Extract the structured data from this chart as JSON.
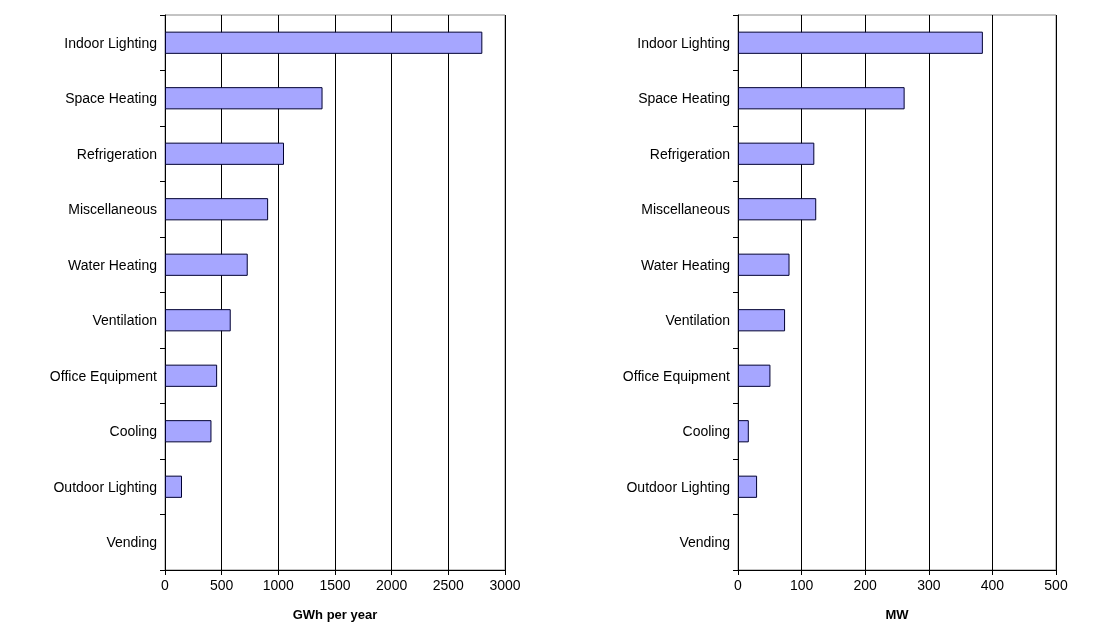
{
  "chart_data": [
    {
      "type": "bar",
      "orientation": "horizontal",
      "categories": [
        "Indoor Lighting",
        "Space Heating",
        "Refrigeration",
        "Miscellaneous",
        "Water Heating",
        "Ventilation",
        "Office Equipment",
        "Cooling",
        "Outdoor Lighting",
        "Vending"
      ],
      "values": [
        2800,
        1390,
        1050,
        910,
        730,
        580,
        460,
        410,
        150,
        0
      ],
      "color": "#a6a6ff",
      "xlabel": "GWh per year",
      "xlim": [
        0,
        3000
      ],
      "xticks": [
        0,
        500,
        1000,
        1500,
        2000,
        2500,
        3000
      ],
      "grid": "x"
    },
    {
      "type": "bar",
      "orientation": "horizontal",
      "categories": [
        "Indoor Lighting",
        "Space Heating",
        "Refrigeration",
        "Miscellaneous",
        "Water Heating",
        "Ventilation",
        "Office Equipment",
        "Cooling",
        "Outdoor Lighting",
        "Vending"
      ],
      "values": [
        385,
        262,
        120,
        123,
        81,
        74,
        51,
        17,
        30,
        0
      ],
      "color": "#a6a6ff",
      "xlabel": "MW",
      "xlim": [
        0,
        500
      ],
      "xticks": [
        0,
        100,
        200,
        300,
        400,
        500
      ],
      "grid": "x"
    }
  ]
}
